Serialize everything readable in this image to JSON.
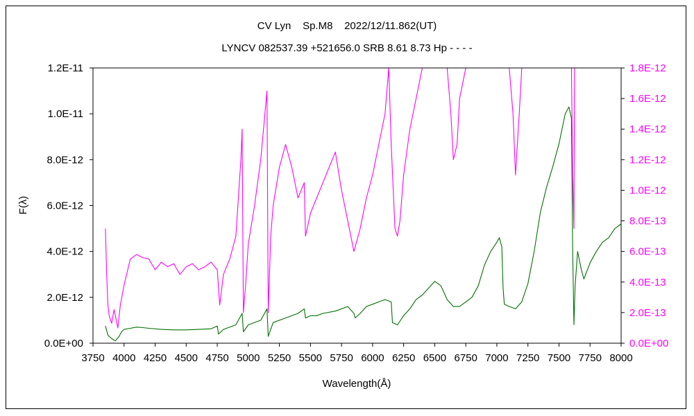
{
  "chart_data": {
    "type": "line",
    "title": "CV Lyn    Sp.M8    2022/12/11.862(UT)",
    "subtitle": "LYNCV 082537.39 +521656.0 SRB 8.61 8.73 Hp - - - -",
    "xlabel": "Wavelength(Å)",
    "ylabel": "F(λ)",
    "xlim": [
      3750,
      8000
    ],
    "ylim_left": [
      0,
      1.2e-11
    ],
    "ylim_right": [
      0,
      1.8e-12
    ],
    "x_ticks": [
      "3750",
      "4000",
      "4250",
      "4500",
      "4750",
      "5000",
      "5250",
      "5500",
      "5750",
      "6000",
      "6250",
      "6500",
      "6750",
      "7000",
      "7250",
      "7500",
      "7750",
      "8000"
    ],
    "y_ticks_left": [
      "0.0E+00",
      "2.0E-12",
      "4.0E-12",
      "6.0E-12",
      "8.0E-12",
      "1.0E-11",
      "1.2E-11"
    ],
    "y_ticks_right": [
      "0.0E+00",
      "2.0E-13",
      "4.0E-13",
      "6.0E-13",
      "8.0E-13",
      "1.0E-12",
      "1.2E-12",
      "1.4E-12",
      "1.6E-12",
      "1.8E-12"
    ],
    "grid": false,
    "series": [
      {
        "axis": "left",
        "color": "#007000",
        "x": [
          3850,
          3870,
          3900,
          3930,
          3960,
          3980,
          4000,
          4050,
          4100,
          4150,
          4200,
          4300,
          4400,
          4500,
          4600,
          4700,
          4750,
          4760,
          4800,
          4900,
          4950,
          4960,
          5000,
          5100,
          5150,
          5160,
          5200,
          5300,
          5400,
          5450,
          5460,
          5500,
          5550,
          5600,
          5700,
          5800,
          5850,
          5860,
          5900,
          5950,
          6000,
          6050,
          6100,
          6150,
          6160,
          6200,
          6250,
          6300,
          6350,
          6400,
          6450,
          6500,
          6550,
          6600,
          6650,
          6700,
          6750,
          6800,
          6850,
          6900,
          6950,
          7000,
          7020,
          7040,
          7050,
          7060,
          7100,
          7150,
          7200,
          7250,
          7300,
          7350,
          7400,
          7450,
          7500,
          7550,
          7580,
          7600,
          7610,
          7620,
          7630,
          7650,
          7680,
          7700,
          7750,
          7800,
          7850,
          7900,
          7950,
          8000
        ],
        "y": [
          7.5e-13,
          3.5e-13,
          2e-13,
          1e-13,
          3e-13,
          5e-13,
          6e-13,
          6.5e-13,
          7e-13,
          6.8e-13,
          6.5e-13,
          6e-13,
          5.8e-13,
          5.8e-13,
          6e-13,
          6.3e-13,
          7.5e-13,
          4e-13,
          6e-13,
          8e-13,
          1.3e-12,
          5e-13,
          8e-13,
          1e-12,
          1.5e-12,
          3e-13,
          9e-13,
          1.1e-12,
          1.3e-12,
          1.5e-12,
          1.1e-12,
          1.2e-12,
          1.2e-12,
          1.3e-12,
          1.4e-12,
          1.6e-12,
          1.3e-12,
          1.1e-12,
          1.3e-12,
          1.6e-12,
          1.7e-12,
          1.8e-12,
          1.9e-12,
          1.8e-12,
          9e-13,
          8e-13,
          1.2e-12,
          1.5e-12,
          1.9e-12,
          2.1e-12,
          2.4e-12,
          2.7e-12,
          2.5e-12,
          1.9e-12,
          1.6e-12,
          1.6e-12,
          1.8e-12,
          2e-12,
          2.5e-12,
          3.4e-12,
          4e-12,
          4.4e-12,
          4.6e-12,
          4.2e-12,
          2.4e-12,
          1.7e-12,
          1.6e-12,
          1.5e-12,
          1.8e-12,
          2.6e-12,
          4e-12,
          5.7e-12,
          6.8e-12,
          7.7e-12,
          8.7e-12,
          1e-11,
          1.03e-11,
          9.8e-12,
          4e-12,
          8e-13,
          2.5e-12,
          4e-12,
          3.2e-12,
          2.8e-12,
          3.5e-12,
          4e-12,
          4.4e-12,
          4.6e-12,
          5e-12,
          5.2e-12
        ]
      },
      {
        "axis": "right",
        "color": "#ff00ff",
        "x": [
          3850,
          3860,
          3870,
          3880,
          3900,
          3920,
          3950,
          3970,
          4000,
          4050,
          4100,
          4150,
          4200,
          4250,
          4300,
          4350,
          4400,
          4450,
          4500,
          4550,
          4600,
          4650,
          4700,
          4750,
          4770,
          4800,
          4850,
          4900,
          4940,
          4950,
          4960,
          4980,
          5000,
          5050,
          5100,
          5150,
          5160,
          5180,
          5200,
          5250,
          5300,
          5350,
          5400,
          5450,
          5460,
          5500,
          5550,
          5600,
          5650,
          5700,
          5750,
          5800,
          5850,
          5900,
          5950,
          6000,
          6050,
          6100,
          6130,
          6150,
          6180,
          6200,
          6220,
          6250,
          6300,
          6350,
          6400,
          6450,
          6500,
          6550,
          6600,
          6630,
          6650,
          6680,
          6700,
          6750,
          6800,
          6850,
          6900,
          6950,
          6970,
          7000,
          7050,
          7100,
          7130,
          7150,
          7180,
          7200,
          7250,
          7300,
          7350,
          7400,
          7450,
          7500,
          7550,
          7580,
          7600,
          7610,
          7620,
          7625,
          7630,
          7640
        ],
        "y": [
          7.5e-13,
          4.5e-13,
          2.5e-13,
          1.8e-13,
          1.3e-13,
          2.2e-13,
          1e-13,
          2.5e-13,
          3.8e-13,
          5.5e-13,
          5.8e-13,
          5.6e-13,
          5.5e-13,
          4.8e-13,
          5.3e-13,
          5e-13,
          5.2e-13,
          4.5e-13,
          5e-13,
          5.2e-13,
          4.8e-13,
          5e-13,
          5.3e-13,
          4.8e-13,
          2.5e-13,
          4.5e-13,
          5.5e-13,
          7e-13,
          1.2e-12,
          1.4e-12,
          2e-13,
          4e-13,
          6.5e-13,
          9e-13,
          1.2e-12,
          1.65e-12,
          2e-13,
          7e-13,
          9e-13,
          1.15e-12,
          1.3e-12,
          1.15e-12,
          9.5e-13,
          1.05e-12,
          7e-13,
          8.5e-13,
          9.5e-13,
          1.05e-12,
          1.15e-12,
          1.25e-12,
          1e-12,
          8e-13,
          6e-13,
          7.5e-13,
          9.5e-13,
          1.1e-12,
          1.3e-12,
          1.5e-12,
          1.8e-12,
          1.3e-12,
          7.5e-13,
          7e-13,
          8e-13,
          1.1e-12,
          1.4e-12,
          1.6e-12,
          1.8e-12,
          1.8e-12,
          1.8e-12,
          1.8e-12,
          1.8e-12,
          1.5e-12,
          1.2e-12,
          1.3e-12,
          1.6e-12,
          1.8e-12,
          1.8e-12,
          1.8e-12,
          1.8e-12,
          1.8e-12,
          1.8e-12,
          1.8e-12,
          1.8e-12,
          1.8e-12,
          1.5e-12,
          1.1e-12,
          1.5e-12,
          1.8e-12,
          1.8e-12,
          1.8e-12,
          1.8e-12,
          1.8e-12,
          1.8e-12,
          1.8e-12,
          1.8e-12,
          1.8e-12,
          1.8e-12,
          1.1e-12,
          7.5e-13,
          1.8e-12,
          1.8e-12,
          1.8e-12
        ]
      }
    ]
  }
}
